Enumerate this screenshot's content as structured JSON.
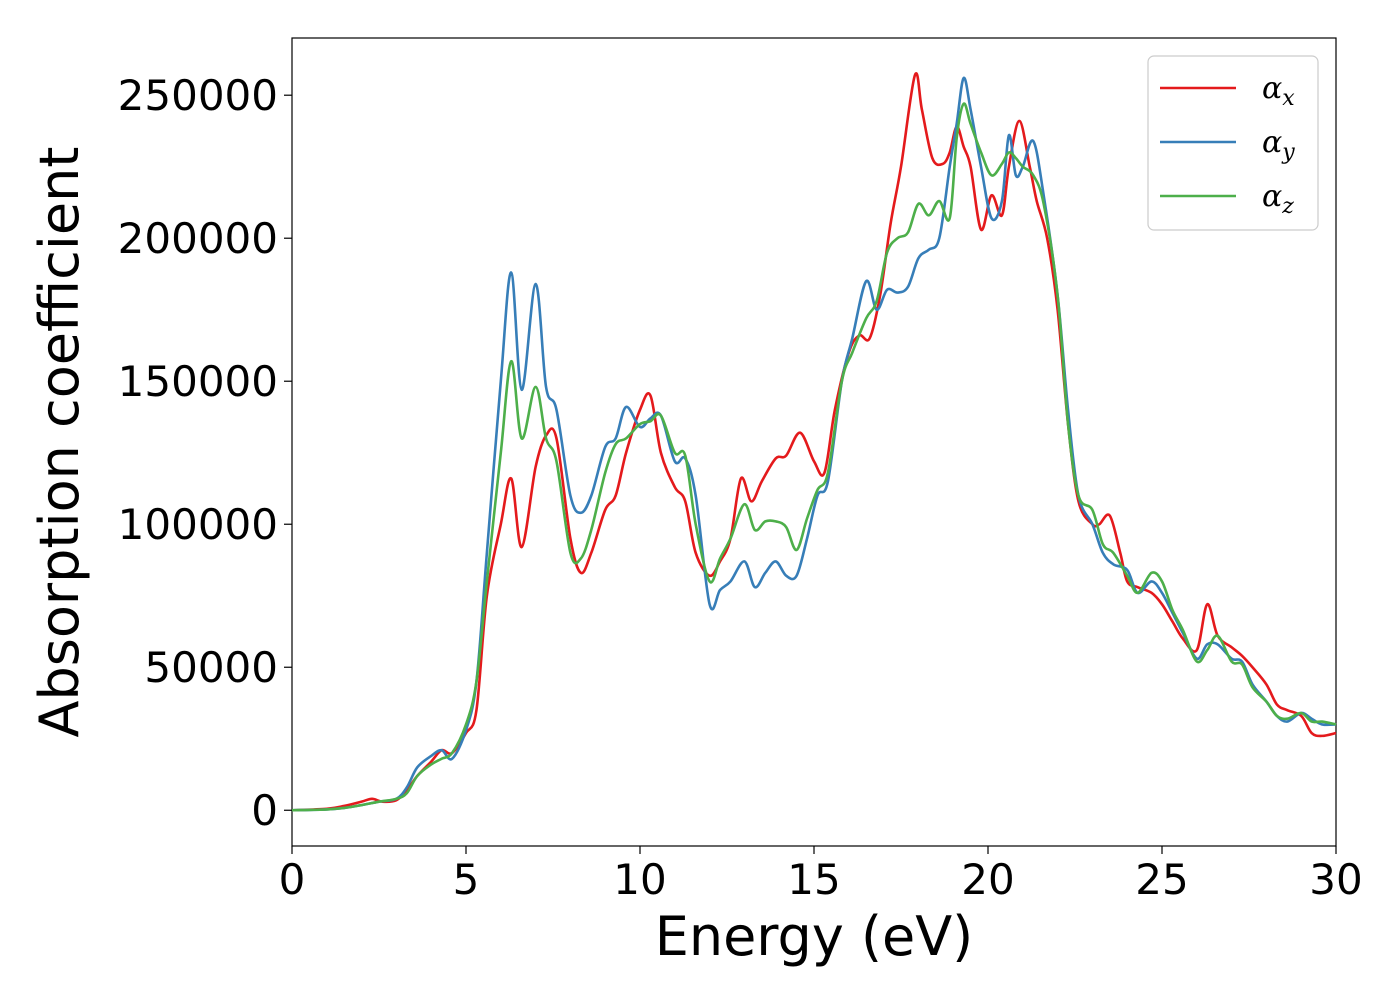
{
  "chart_data": {
    "type": "line",
    "xlabel": "Energy (eV)",
    "ylabel": "Absorption coefficient",
    "xlim": [
      0,
      30
    ],
    "ylim": [
      -12500,
      270000
    ],
    "xticks": [
      0,
      5,
      10,
      15,
      20,
      25,
      30
    ],
    "yticks": [
      0,
      50000,
      100000,
      150000,
      200000,
      250000
    ],
    "grid": false,
    "legend_position": "top-right",
    "series": [
      {
        "name": "αx",
        "label_base": "α",
        "label_sub": "x",
        "color": "#e41a1c",
        "x": [
          0,
          1,
          1.5,
          2,
          2.3,
          2.6,
          3,
          3.3,
          3.6,
          4,
          4.3,
          4.6,
          5,
          5.3,
          5.6,
          6,
          6.3,
          6.6,
          7,
          7.3,
          7.6,
          8,
          8.3,
          8.6,
          9,
          9.3,
          9.6,
          10,
          10.3,
          10.6,
          11,
          11.3,
          11.6,
          12,
          12.3,
          12.6,
          12.9,
          13.2,
          13.5,
          13.9,
          14.2,
          14.6,
          15,
          15.3,
          15.6,
          16,
          16.3,
          16.6,
          16.9,
          17.2,
          17.5,
          17.9,
          18.1,
          18.4,
          18.7,
          18.9,
          19.1,
          19.3,
          19.5,
          19.8,
          20.1,
          20.4,
          20.6,
          20.9,
          21.2,
          21.4,
          21.7,
          22,
          22.3,
          22.6,
          23,
          23.2,
          23.5,
          23.8,
          24,
          24.3,
          24.7,
          25,
          25.3,
          25.6,
          26,
          26.3,
          26.6,
          27,
          27.3,
          27.6,
          28,
          28.3,
          28.6,
          29,
          29.3,
          29.6,
          30
        ],
        "y": [
          0,
          500,
          1500,
          3000,
          4000,
          3000,
          3500,
          7000,
          12000,
          17000,
          21000,
          20000,
          27000,
          35000,
          75000,
          100000,
          116000,
          92000,
          120000,
          131000,
          130000,
          95000,
          83000,
          90000,
          105000,
          110000,
          125000,
          140000,
          145000,
          125000,
          113000,
          108000,
          90000,
          82000,
          87000,
          95000,
          116000,
          108000,
          115000,
          123000,
          124000,
          132000,
          122000,
          118000,
          140000,
          160000,
          166000,
          165000,
          180000,
          205000,
          225000,
          257000,
          245000,
          228000,
          226000,
          230000,
          239000,
          232000,
          225000,
          203000,
          215000,
          208000,
          225000,
          241000,
          225000,
          213000,
          200000,
          175000,
          135000,
          108000,
          100000,
          100000,
          103000,
          90000,
          80000,
          78000,
          76000,
          72000,
          66000,
          60000,
          56000,
          72000,
          61000,
          57000,
          54000,
          50000,
          44000,
          37000,
          35000,
          33000,
          27000,
          26000,
          27000
        ]
      },
      {
        "name": "αy",
        "label_base": "α",
        "label_sub": "y",
        "color": "#377eb8",
        "x": [
          0,
          1,
          1.5,
          2,
          2.5,
          3,
          3.3,
          3.6,
          4,
          4.3,
          4.6,
          5,
          5.3,
          5.6,
          6,
          6.3,
          6.6,
          7,
          7.3,
          7.6,
          8,
          8.3,
          8.6,
          9,
          9.3,
          9.6,
          10,
          10.3,
          10.6,
          11,
          11.3,
          11.6,
          12,
          12.3,
          12.6,
          13,
          13.3,
          13.6,
          13.9,
          14.2,
          14.5,
          14.8,
          15.1,
          15.4,
          15.8,
          16.1,
          16.5,
          16.8,
          17.1,
          17.4,
          17.7,
          18,
          18.3,
          18.6,
          18.9,
          19.1,
          19.3,
          19.5,
          19.8,
          20.1,
          20.4,
          20.6,
          20.8,
          21,
          21.3,
          21.6,
          22,
          22.3,
          22.6,
          23,
          23.3,
          23.6,
          24,
          24.3,
          24.7,
          25,
          25.3,
          25.6,
          26,
          26.3,
          26.6,
          27,
          27.3,
          27.6,
          28,
          28.3,
          28.6,
          29,
          29.3,
          29.6,
          30
        ],
        "y": [
          0,
          300,
          800,
          1800,
          3000,
          4000,
          8000,
          15000,
          19000,
          21000,
          18000,
          28000,
          45000,
          90000,
          150000,
          188000,
          147000,
          184000,
          148000,
          140000,
          110000,
          104000,
          110000,
          127000,
          130000,
          141000,
          134000,
          137000,
          138000,
          122000,
          123000,
          110000,
          72000,
          77000,
          80000,
          87000,
          78000,
          83000,
          87000,
          82000,
          82000,
          95000,
          110000,
          115000,
          150000,
          165000,
          185000,
          175000,
          182000,
          181000,
          183000,
          193000,
          196000,
          200000,
          225000,
          240000,
          256000,
          245000,
          225000,
          207000,
          213000,
          236000,
          222000,
          225000,
          234000,
          215000,
          180000,
          140000,
          110000,
          100000,
          90000,
          86000,
          84000,
          76000,
          80000,
          76000,
          69000,
          62000,
          53000,
          58000,
          58000,
          53000,
          52000,
          44000,
          38000,
          33000,
          31000,
          34000,
          32000,
          30000,
          30000
        ]
      },
      {
        "name": "αz",
        "label_base": "α",
        "label_sub": "z",
        "color": "#4daf4a",
        "x": [
          0,
          1,
          1.5,
          2,
          2.5,
          3,
          3.3,
          3.6,
          4,
          4.3,
          4.6,
          5,
          5.3,
          5.6,
          6,
          6.3,
          6.6,
          7,
          7.3,
          7.6,
          8,
          8.3,
          8.6,
          9,
          9.3,
          9.6,
          10,
          10.3,
          10.6,
          11,
          11.3,
          11.6,
          12,
          12.3,
          12.6,
          13,
          13.3,
          13.6,
          13.9,
          14.2,
          14.5,
          14.8,
          15.1,
          15.4,
          15.8,
          16.1,
          16.5,
          16.8,
          17.1,
          17.4,
          17.7,
          18,
          18.3,
          18.6,
          18.9,
          19.1,
          19.3,
          19.5,
          19.8,
          20.1,
          20.4,
          20.6,
          20.8,
          21,
          21.3,
          21.6,
          22,
          22.3,
          22.6,
          23,
          23.3,
          23.6,
          24,
          24.3,
          24.7,
          25,
          25.3,
          25.6,
          26,
          26.3,
          26.6,
          27,
          27.3,
          27.6,
          28,
          28.3,
          28.6,
          29,
          29.3,
          29.6,
          30
        ],
        "y": [
          0,
          300,
          800,
          1800,
          3000,
          4000,
          6000,
          12000,
          16000,
          18000,
          20000,
          30000,
          45000,
          80000,
          125000,
          157000,
          130000,
          148000,
          130000,
          122000,
          90000,
          88000,
          98000,
          118000,
          128000,
          130000,
          135000,
          136000,
          138000,
          125000,
          124000,
          100000,
          80000,
          88000,
          95000,
          107000,
          98000,
          101000,
          101000,
          99000,
          91000,
          102000,
          112000,
          118000,
          150000,
          160000,
          172000,
          178000,
          195000,
          200000,
          202000,
          212000,
          208000,
          213000,
          207000,
          235000,
          247000,
          240000,
          230000,
          222000,
          226000,
          230000,
          228000,
          225000,
          222000,
          212000,
          180000,
          135000,
          110000,
          105000,
          93000,
          90000,
          82000,
          76000,
          83000,
          80000,
          70000,
          63000,
          52000,
          56000,
          61000,
          52000,
          51000,
          43000,
          38000,
          33000,
          32000,
          34000,
          31000,
          31000,
          30000
        ]
      }
    ]
  }
}
